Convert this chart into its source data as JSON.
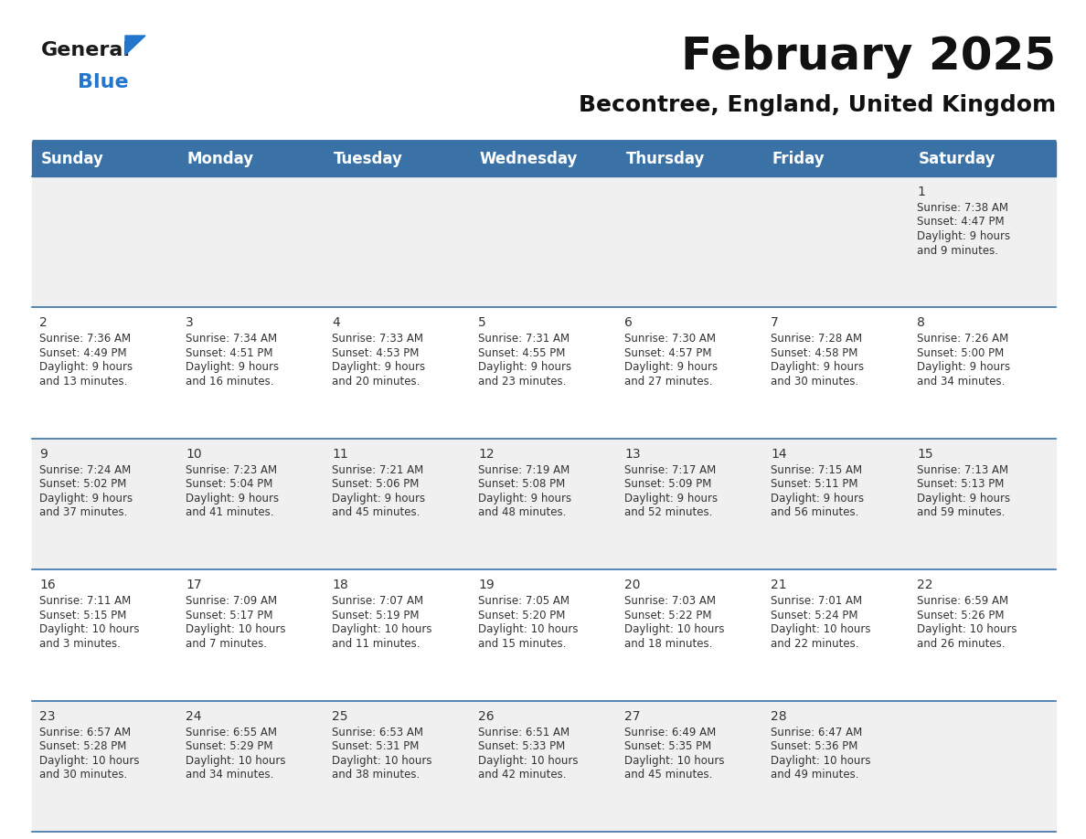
{
  "title": "February 2025",
  "subtitle": "Becontree, England, United Kingdom",
  "header_bg": "#3A72A8",
  "header_text_color": "#FFFFFF",
  "header_font_size": 12,
  "day_names": [
    "Sunday",
    "Monday",
    "Tuesday",
    "Wednesday",
    "Thursday",
    "Friday",
    "Saturday"
  ],
  "title_font_size": 36,
  "subtitle_font_size": 18,
  "bg_color": "#FFFFFF",
  "row_odd_color": "#F0F0F0",
  "row_even_color": "#FFFFFF",
  "cell_text_color": "#333333",
  "separator_color": "#3A72A8",
  "logo_general_color": "#1a1a1a",
  "logo_blue_color": "#2277CC",
  "logo_triangle_color": "#2277CC",
  "calendar": [
    [
      null,
      null,
      null,
      null,
      null,
      null,
      1
    ],
    [
      2,
      3,
      4,
      5,
      6,
      7,
      8
    ],
    [
      9,
      10,
      11,
      12,
      13,
      14,
      15
    ],
    [
      16,
      17,
      18,
      19,
      20,
      21,
      22
    ],
    [
      23,
      24,
      25,
      26,
      27,
      28,
      null
    ]
  ],
  "cell_data": {
    "1": {
      "sunrise": "7:38 AM",
      "sunset": "4:47 PM",
      "daylight": "9 hours",
      "daylight2": "and 9 minutes."
    },
    "2": {
      "sunrise": "7:36 AM",
      "sunset": "4:49 PM",
      "daylight": "9 hours",
      "daylight2": "and 13 minutes."
    },
    "3": {
      "sunrise": "7:34 AM",
      "sunset": "4:51 PM",
      "daylight": "9 hours",
      "daylight2": "and 16 minutes."
    },
    "4": {
      "sunrise": "7:33 AM",
      "sunset": "4:53 PM",
      "daylight": "9 hours",
      "daylight2": "and 20 minutes."
    },
    "5": {
      "sunrise": "7:31 AM",
      "sunset": "4:55 PM",
      "daylight": "9 hours",
      "daylight2": "and 23 minutes."
    },
    "6": {
      "sunrise": "7:30 AM",
      "sunset": "4:57 PM",
      "daylight": "9 hours",
      "daylight2": "and 27 minutes."
    },
    "7": {
      "sunrise": "7:28 AM",
      "sunset": "4:58 PM",
      "daylight": "9 hours",
      "daylight2": "and 30 minutes."
    },
    "8": {
      "sunrise": "7:26 AM",
      "sunset": "5:00 PM",
      "daylight": "9 hours",
      "daylight2": "and 34 minutes."
    },
    "9": {
      "sunrise": "7:24 AM",
      "sunset": "5:02 PM",
      "daylight": "9 hours",
      "daylight2": "and 37 minutes."
    },
    "10": {
      "sunrise": "7:23 AM",
      "sunset": "5:04 PM",
      "daylight": "9 hours",
      "daylight2": "and 41 minutes."
    },
    "11": {
      "sunrise": "7:21 AM",
      "sunset": "5:06 PM",
      "daylight": "9 hours",
      "daylight2": "and 45 minutes."
    },
    "12": {
      "sunrise": "7:19 AM",
      "sunset": "5:08 PM",
      "daylight": "9 hours",
      "daylight2": "and 48 minutes."
    },
    "13": {
      "sunrise": "7:17 AM",
      "sunset": "5:09 PM",
      "daylight": "9 hours",
      "daylight2": "and 52 minutes."
    },
    "14": {
      "sunrise": "7:15 AM",
      "sunset": "5:11 PM",
      "daylight": "9 hours",
      "daylight2": "and 56 minutes."
    },
    "15": {
      "sunrise": "7:13 AM",
      "sunset": "5:13 PM",
      "daylight": "9 hours",
      "daylight2": "and 59 minutes."
    },
    "16": {
      "sunrise": "7:11 AM",
      "sunset": "5:15 PM",
      "daylight": "10 hours",
      "daylight2": "and 3 minutes."
    },
    "17": {
      "sunrise": "7:09 AM",
      "sunset": "5:17 PM",
      "daylight": "10 hours",
      "daylight2": "and 7 minutes."
    },
    "18": {
      "sunrise": "7:07 AM",
      "sunset": "5:19 PM",
      "daylight": "10 hours",
      "daylight2": "and 11 minutes."
    },
    "19": {
      "sunrise": "7:05 AM",
      "sunset": "5:20 PM",
      "daylight": "10 hours",
      "daylight2": "and 15 minutes."
    },
    "20": {
      "sunrise": "7:03 AM",
      "sunset": "5:22 PM",
      "daylight": "10 hours",
      "daylight2": "and 18 minutes."
    },
    "21": {
      "sunrise": "7:01 AM",
      "sunset": "5:24 PM",
      "daylight": "10 hours",
      "daylight2": "and 22 minutes."
    },
    "22": {
      "sunrise": "6:59 AM",
      "sunset": "5:26 PM",
      "daylight": "10 hours",
      "daylight2": "and 26 minutes."
    },
    "23": {
      "sunrise": "6:57 AM",
      "sunset": "5:28 PM",
      "daylight": "10 hours",
      "daylight2": "and 30 minutes."
    },
    "24": {
      "sunrise": "6:55 AM",
      "sunset": "5:29 PM",
      "daylight": "10 hours",
      "daylight2": "and 34 minutes."
    },
    "25": {
      "sunrise": "6:53 AM",
      "sunset": "5:31 PM",
      "daylight": "10 hours",
      "daylight2": "and 38 minutes."
    },
    "26": {
      "sunrise": "6:51 AM",
      "sunset": "5:33 PM",
      "daylight": "10 hours",
      "daylight2": "and 42 minutes."
    },
    "27": {
      "sunrise": "6:49 AM",
      "sunset": "5:35 PM",
      "daylight": "10 hours",
      "daylight2": "and 45 minutes."
    },
    "28": {
      "sunrise": "6:47 AM",
      "sunset": "5:36 PM",
      "daylight": "10 hours",
      "daylight2": "and 49 minutes."
    }
  }
}
